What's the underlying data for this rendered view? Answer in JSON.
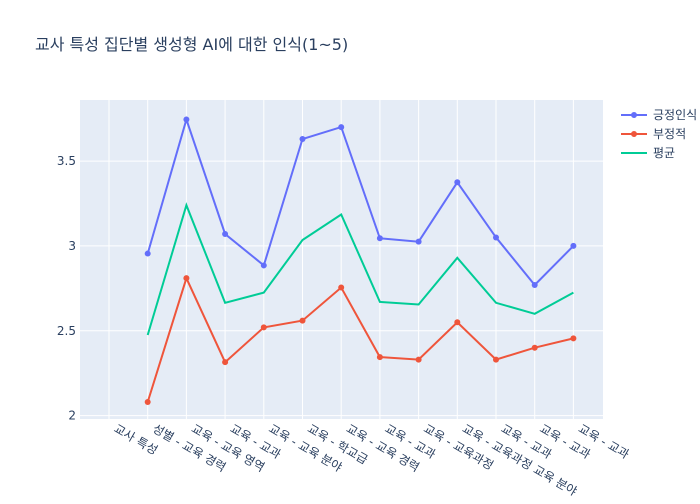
{
  "chart_data": {
    "type": "line",
    "title": "교사 특성 집단별 생성형 AI에 대한 인식(1~5)",
    "xlabel": "",
    "ylabel": "",
    "categories": [
      "교사 특성",
      "성별 - 교육 경력",
      "교육 - 교육 영역",
      "교육 - 교과",
      "교육 - 교육 분야",
      "교육 - 학교급",
      "교육 - 교육 경력",
      "교육 - 교과",
      "교육 - 교육과정",
      "교육 - 교육과정 교육 분야",
      "교육 - 교과",
      "교육 - 교과",
      "교육 - 교과"
    ],
    "ylim": [
      1.98,
      3.86
    ],
    "yticks": [
      2,
      2.5,
      3,
      3.5
    ],
    "ytick_labels": [
      "2",
      "2.5",
      "3",
      "3.5"
    ],
    "grid": true,
    "legend_position": "top-right",
    "series": [
      {
        "name": "긍정인식",
        "color": "#636efa",
        "markers": true,
        "values": [
          null,
          2.955,
          3.745,
          3.07,
          2.885,
          3.63,
          3.7,
          3.045,
          3.025,
          3.375,
          3.05,
          2.77,
          3.0
        ]
      },
      {
        "name": "부정적",
        "color": "#ef553b",
        "markers": true,
        "values": [
          null,
          2.08,
          2.81,
          2.315,
          2.52,
          2.56,
          2.755,
          2.345,
          2.33,
          2.55,
          2.33,
          2.4,
          2.455
        ]
      },
      {
        "name": "평균",
        "color": "#00cc96",
        "markers": false,
        "values": [
          null,
          2.475,
          3.24,
          2.665,
          2.725,
          3.035,
          3.185,
          2.67,
          2.655,
          2.93,
          2.665,
          2.6,
          2.725
        ]
      }
    ]
  }
}
